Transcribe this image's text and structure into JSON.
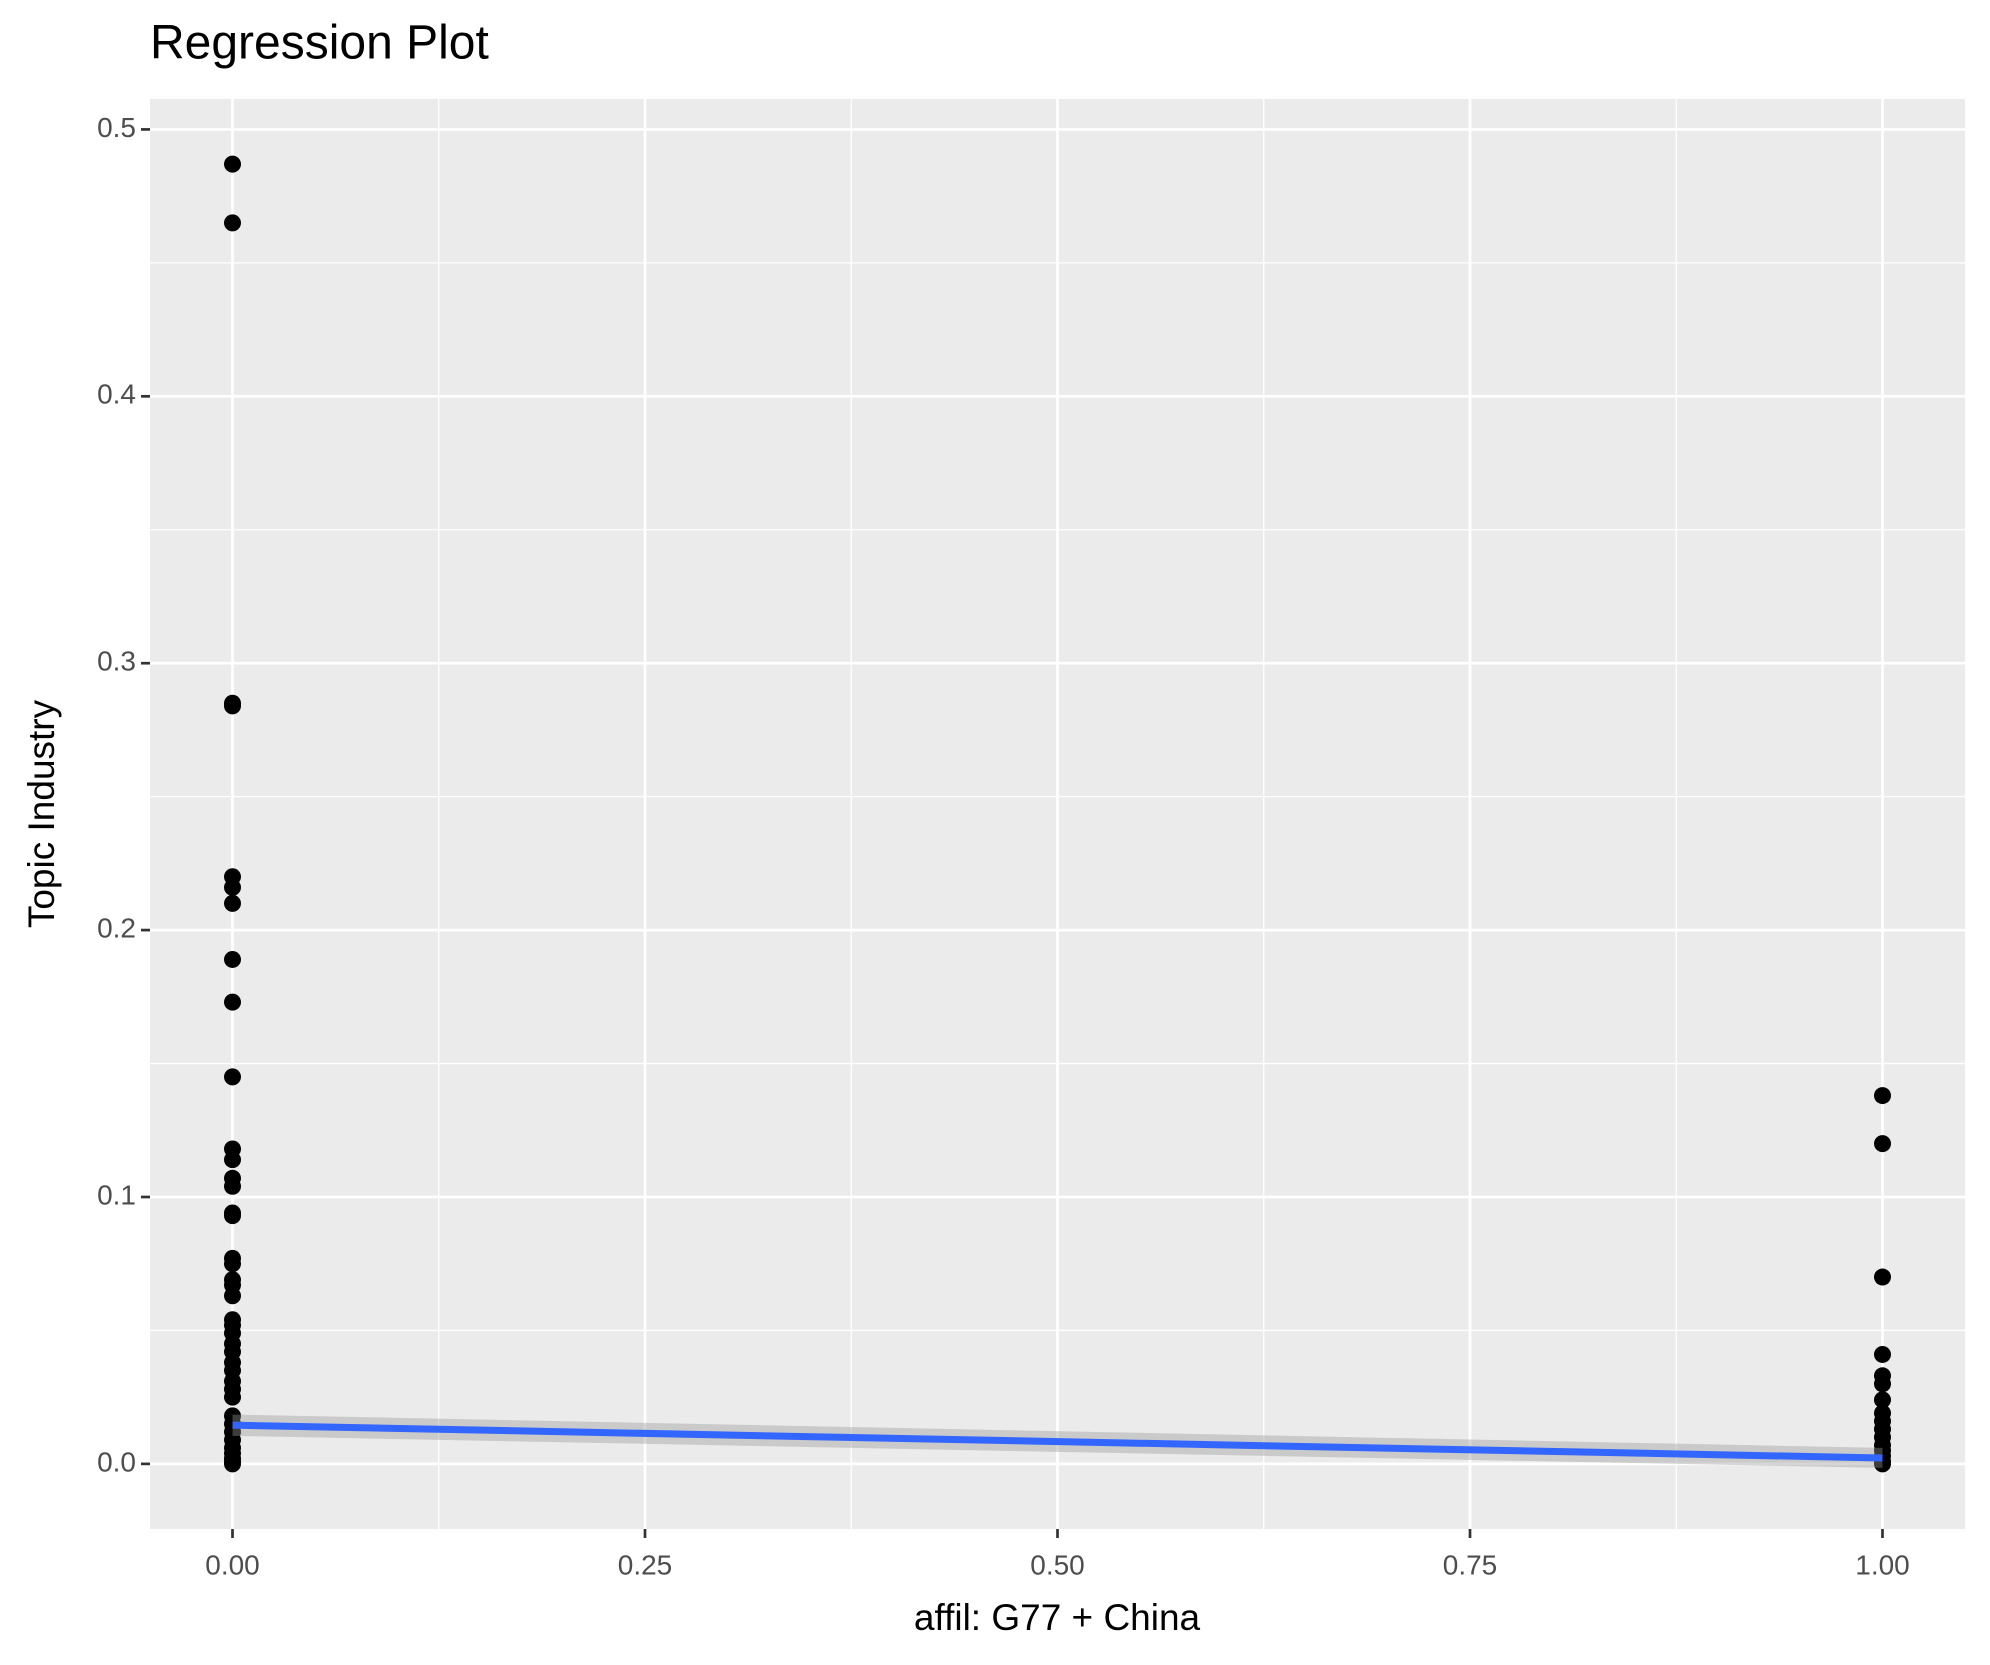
{
  "chart_data": {
    "type": "scatter",
    "title": "Regression Plot",
    "x_label": "affil: G77 + China",
    "y_label": "Topic Industry",
    "x": [
      0,
      0,
      0,
      0,
      0,
      0,
      0,
      0,
      0,
      0,
      0,
      0,
      0,
      0,
      0,
      0,
      0,
      0,
      0,
      0,
      0,
      0,
      0,
      0,
      0,
      0,
      0,
      0,
      0,
      0,
      0,
      0,
      0,
      0,
      0,
      0,
      0,
      0,
      0,
      0,
      1,
      1,
      1,
      1,
      1,
      1,
      1,
      1,
      1,
      1,
      1,
      1,
      1,
      1,
      1,
      1
    ],
    "y": [
      0.487,
      0.465,
      0.285,
      0.284,
      0.22,
      0.216,
      0.21,
      0.189,
      0.173,
      0.145,
      0.118,
      0.114,
      0.107,
      0.104,
      0.094,
      0.093,
      0.077,
      0.075,
      0.069,
      0.067,
      0.063,
      0.054,
      0.052,
      0.049,
      0.045,
      0.042,
      0.038,
      0.035,
      0.031,
      0.028,
      0.025,
      0.018,
      0.015,
      0.012,
      0.009,
      0.006,
      0.004,
      0.002,
      0.001,
      0,
      0.138,
      0.12,
      0.07,
      0.041,
      0.033,
      0.03,
      0.024,
      0.019,
      0.016,
      0.013,
      0.01,
      0.007,
      0.005,
      0.003,
      0.001,
      0
    ],
    "point_color": "#000000",
    "fit": {
      "x": [
        0,
        1
      ],
      "y": [
        0.0145,
        0.0022
      ],
      "lower": [
        0.0105,
        -0.0015
      ],
      "upper": [
        0.0185,
        0.006
      ],
      "color": "#3366FF",
      "band_color": "#999999"
    },
    "xlim": [
      -0.05,
      1.05
    ],
    "ylim": [
      -0.0244,
      0.5114
    ],
    "xticks": [
      {
        "value": 0,
        "label": "0.00"
      },
      {
        "value": 0.25,
        "label": "0.25"
      },
      {
        "value": 0.5,
        "label": "0.50"
      },
      {
        "value": 0.75,
        "label": "0.75"
      },
      {
        "value": 1,
        "label": "1.00"
      }
    ],
    "yticks": [
      {
        "value": 0,
        "label": "0.0"
      },
      0.1,
      0.2,
      0.3,
      0.4,
      0.5
    ],
    "xminor": [
      0.125,
      0.375,
      0.625,
      0.875
    ],
    "yminor": [
      0.05,
      0.15,
      0.25,
      0.35,
      0.45
    ],
    "grid": true
  }
}
